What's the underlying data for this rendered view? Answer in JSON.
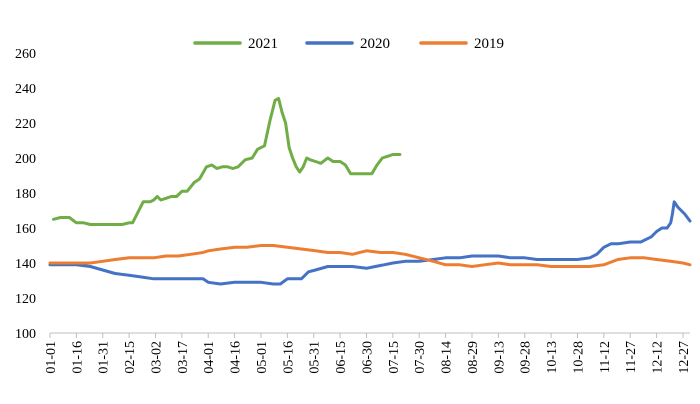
{
  "chart_data": {
    "type": "line",
    "title": "",
    "xlabel": "",
    "ylabel": "",
    "ylim": [
      100,
      260
    ],
    "y_ticks": [
      100,
      120,
      140,
      160,
      180,
      200,
      220,
      240,
      260
    ],
    "x_ticks": [
      "01-01",
      "01-16",
      "01-31",
      "02-15",
      "03-02",
      "03-17",
      "04-01",
      "04-16",
      "05-01",
      "05-16",
      "05-31",
      "06-15",
      "06-30",
      "07-15",
      "07-30",
      "08-14",
      "08-29",
      "09-13",
      "09-28",
      "10-13",
      "10-28",
      "11-12",
      "11-27",
      "12-12",
      "12-27"
    ],
    "grid": false,
    "legend_position": "top-center",
    "series": [
      {
        "name": "2021",
        "color": "#70AD47",
        "x": [
          "01-03",
          "01-07",
          "01-12",
          "01-16",
          "01-20",
          "01-24",
          "01-27",
          "01-31",
          "02-03",
          "02-07",
          "02-11",
          "02-15",
          "02-17",
          "02-20",
          "02-23",
          "02-27",
          "03-01",
          "03-03",
          "03-05",
          "03-08",
          "03-11",
          "03-14",
          "03-17",
          "03-20",
          "03-24",
          "03-27",
          "03-31",
          "04-03",
          "04-06",
          "04-09",
          "04-12",
          "04-15",
          "04-18",
          "04-22",
          "04-26",
          "04-29",
          "05-03",
          "05-06",
          "05-09",
          "05-11",
          "05-13",
          "05-15",
          "05-17",
          "05-19",
          "05-21",
          "05-23",
          "05-25",
          "05-27",
          "05-29",
          "06-01",
          "06-04",
          "06-08",
          "06-11",
          "06-15",
          "06-18",
          "06-21",
          "06-24",
          "06-27",
          "06-30",
          "07-03",
          "07-06",
          "07-09",
          "07-12",
          "07-15",
          "07-19"
        ],
        "values": [
          165,
          166,
          166,
          163,
          163,
          162,
          162,
          162,
          162,
          162,
          162,
          163,
          163,
          169,
          175,
          175,
          176,
          178,
          176,
          177,
          178,
          178,
          181,
          181,
          186,
          188,
          195,
          196,
          194,
          195,
          195,
          194,
          195,
          199,
          200,
          205,
          207,
          221,
          233,
          234,
          226,
          220,
          206,
          200,
          195,
          192,
          195,
          200,
          199,
          198,
          197,
          200,
          198,
          198,
          196,
          191,
          191,
          191,
          191,
          191,
          196,
          200,
          201,
          202,
          202
        ]
      },
      {
        "name": "2020",
        "color": "#4472C4",
        "x": [
          "01-01",
          "01-08",
          "01-16",
          "01-24",
          "01-31",
          "02-07",
          "02-15",
          "02-22",
          "03-01",
          "03-08",
          "03-15",
          "03-22",
          "03-29",
          "04-01",
          "04-08",
          "04-16",
          "04-23",
          "05-01",
          "05-08",
          "05-12",
          "05-16",
          "05-20",
          "05-24",
          "05-28",
          "06-01",
          "06-08",
          "06-15",
          "06-22",
          "06-30",
          "07-05",
          "07-10",
          "07-15",
          "07-22",
          "07-30",
          "08-07",
          "08-14",
          "08-22",
          "08-29",
          "09-05",
          "09-13",
          "09-20",
          "09-28",
          "10-05",
          "10-13",
          "10-20",
          "10-28",
          "11-04",
          "11-08",
          "11-12",
          "11-16",
          "11-20",
          "11-27",
          "12-03",
          "12-09",
          "12-12",
          "12-15",
          "12-18",
          "12-20",
          "12-21",
          "12-22",
          "12-24",
          "12-26",
          "12-28",
          "12-31"
        ],
        "values": [
          139,
          139,
          139,
          138,
          136,
          134,
          133,
          132,
          131,
          131,
          131,
          131,
          131,
          129,
          128,
          129,
          129,
          129,
          128,
          128,
          131,
          131,
          131,
          135,
          136,
          138,
          138,
          138,
          137,
          138,
          139,
          140,
          141,
          141,
          142,
          143,
          143,
          144,
          144,
          144,
          143,
          143,
          142,
          142,
          142,
          142,
          143,
          145,
          149,
          151,
          151,
          152,
          152,
          155,
          158,
          160,
          160,
          163,
          168,
          175,
          172,
          170,
          168,
          164
        ]
      },
      {
        "name": "2019",
        "color": "#ED7D31",
        "x": [
          "01-01",
          "01-08",
          "01-16",
          "01-24",
          "01-31",
          "02-07",
          "02-15",
          "02-22",
          "03-01",
          "03-08",
          "03-15",
          "03-22",
          "03-29",
          "04-01",
          "04-08",
          "04-16",
          "04-23",
          "05-01",
          "05-08",
          "05-16",
          "05-24",
          "06-01",
          "06-08",
          "06-15",
          "06-22",
          "06-30",
          "07-08",
          "07-15",
          "07-22",
          "07-30",
          "08-07",
          "08-14",
          "08-22",
          "08-29",
          "09-05",
          "09-13",
          "09-20",
          "09-28",
          "10-05",
          "10-13",
          "10-20",
          "10-28",
          "11-04",
          "11-12",
          "11-20",
          "11-27",
          "12-05",
          "12-12",
          "12-20",
          "12-27",
          "12-31"
        ],
        "values": [
          140,
          140,
          140,
          140,
          141,
          142,
          143,
          143,
          143,
          144,
          144,
          145,
          146,
          147,
          148,
          149,
          149,
          150,
          150,
          149,
          148,
          147,
          146,
          146,
          145,
          147,
          146,
          146,
          145,
          143,
          141,
          139,
          139,
          138,
          139,
          140,
          139,
          139,
          139,
          138,
          138,
          138,
          138,
          139,
          142,
          143,
          143,
          142,
          141,
          140,
          139
        ]
      }
    ]
  }
}
